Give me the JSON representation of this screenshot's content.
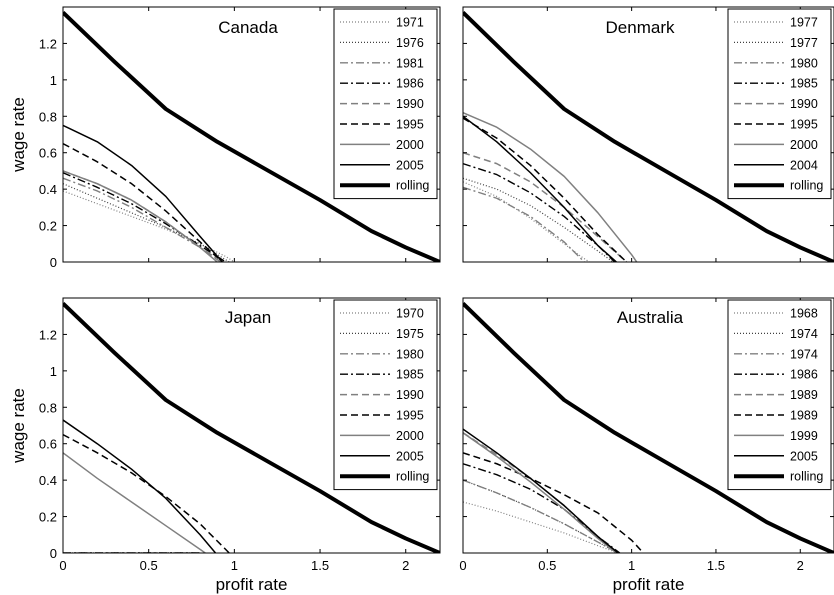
{
  "chart_data": [
    {
      "type": "line",
      "title": "Canada",
      "xlabel": "",
      "ylabel": "wage rate",
      "xlim": [
        0,
        2.2
      ],
      "ylim": [
        0,
        1.4
      ],
      "xticks": [
        "",
        "",
        "",
        "",
        ""
      ],
      "yticks": [
        "0",
        "0.2",
        "0.4",
        "0.6",
        "0.8",
        "1",
        "1.2"
      ],
      "grid": false,
      "legend_position": "top-right",
      "series": [
        {
          "name": "1971",
          "color": "#808080",
          "dash": "1,2",
          "width": 1.2,
          "x": [
            0,
            0.2,
            0.4,
            0.6,
            0.8,
            0.95,
            1.0
          ],
          "y": [
            0.39,
            0.32,
            0.25,
            0.18,
            0.1,
            0.03,
            0.0
          ]
        },
        {
          "name": "1976",
          "color": "#404040",
          "dash": "1,2",
          "width": 1.2,
          "x": [
            0,
            0.2,
            0.4,
            0.6,
            0.8,
            0.92,
            0.97
          ],
          "y": [
            0.43,
            0.35,
            0.27,
            0.19,
            0.1,
            0.03,
            0.0
          ]
        },
        {
          "name": "1981",
          "color": "#808080",
          "dash": "8,3,2,3",
          "width": 1.4,
          "x": [
            0,
            0.2,
            0.4,
            0.6,
            0.8,
            0.93
          ],
          "y": [
            0.46,
            0.39,
            0.3,
            0.19,
            0.08,
            0.0
          ]
        },
        {
          "name": "1986",
          "color": "#000000",
          "dash": "8,3,2,3",
          "width": 1.4,
          "x": [
            0,
            0.2,
            0.4,
            0.6,
            0.8,
            0.95
          ],
          "y": [
            0.49,
            0.41,
            0.32,
            0.21,
            0.09,
            0.0
          ]
        },
        {
          "name": "1990",
          "color": "#808080",
          "dash": "7,4",
          "width": 1.5,
          "x": [
            0,
            0.2,
            0.4,
            0.6,
            0.8,
            0.92
          ],
          "y": [
            0.5,
            0.43,
            0.34,
            0.22,
            0.08,
            0.0
          ]
        },
        {
          "name": "1995",
          "color": "#000000",
          "dash": "7,4",
          "width": 1.5,
          "x": [
            0,
            0.2,
            0.4,
            0.6,
            0.8,
            0.93
          ],
          "y": [
            0.65,
            0.55,
            0.43,
            0.28,
            0.11,
            0.0
          ]
        },
        {
          "name": "2000",
          "color": "#808080",
          "dash": "",
          "width": 1.5,
          "x": [
            0,
            0.2,
            0.4,
            0.6,
            0.8,
            0.9
          ],
          "y": [
            0.5,
            0.43,
            0.34,
            0.22,
            0.08,
            0.0
          ]
        },
        {
          "name": "2005",
          "color": "#000000",
          "dash": "",
          "width": 1.5,
          "x": [
            0,
            0.2,
            0.4,
            0.6,
            0.8,
            0.93
          ],
          "y": [
            0.75,
            0.66,
            0.53,
            0.36,
            0.14,
            0.0
          ]
        },
        {
          "name": "rolling",
          "color": "#000000",
          "dash": "",
          "width": 4,
          "x": [
            0,
            0.3,
            0.6,
            0.9,
            1.2,
            1.5,
            1.8,
            2.0,
            2.2
          ],
          "y": [
            1.37,
            1.1,
            0.84,
            0.66,
            0.5,
            0.34,
            0.17,
            0.08,
            0.0
          ]
        }
      ]
    },
    {
      "type": "line",
      "title": "Denmark",
      "xlabel": "",
      "ylabel": "",
      "xlim": [
        0,
        2.2
      ],
      "ylim": [
        0,
        1.4
      ],
      "xticks": [
        "",
        "",
        "",
        "",
        ""
      ],
      "yticks": [
        "",
        "",
        "",
        "",
        "",
        "",
        ""
      ],
      "grid": false,
      "legend_position": "top-right",
      "series": [
        {
          "name": "1977",
          "color": "#808080",
          "dash": "1,2",
          "width": 1.2,
          "x": [
            0,
            0.2,
            0.4,
            0.6,
            0.7,
            0.75
          ],
          "y": [
            0.44,
            0.36,
            0.24,
            0.1,
            0.03,
            0.0
          ]
        },
        {
          "name": "1977",
          "color": "#404040",
          "dash": "1,2",
          "width": 1.2,
          "x": [
            0,
            0.2,
            0.4,
            0.6,
            0.8,
            0.89
          ],
          "y": [
            0.46,
            0.4,
            0.31,
            0.19,
            0.06,
            0.0
          ]
        },
        {
          "name": "1980",
          "color": "#808080",
          "dash": "8,3,2,3",
          "width": 1.4,
          "x": [
            0,
            0.2,
            0.4,
            0.6,
            0.72
          ],
          "y": [
            0.41,
            0.35,
            0.25,
            0.11,
            0.0
          ]
        },
        {
          "name": "1985",
          "color": "#000000",
          "dash": "8,3,2,3",
          "width": 1.4,
          "x": [
            0,
            0.2,
            0.4,
            0.6,
            0.8,
            0.9
          ],
          "y": [
            0.54,
            0.48,
            0.38,
            0.25,
            0.09,
            0.0
          ]
        },
        {
          "name": "1990",
          "color": "#808080",
          "dash": "7,4",
          "width": 1.5,
          "x": [
            0,
            0.2,
            0.4,
            0.6,
            0.8,
            0.97
          ],
          "y": [
            0.6,
            0.54,
            0.44,
            0.3,
            0.14,
            0.0
          ]
        },
        {
          "name": "1995",
          "color": "#000000",
          "dash": "7,4",
          "width": 1.5,
          "x": [
            0,
            0.2,
            0.4,
            0.6,
            0.8,
            0.97
          ],
          "y": [
            0.79,
            0.68,
            0.53,
            0.35,
            0.15,
            0.0
          ]
        },
        {
          "name": "2000",
          "color": "#808080",
          "dash": "",
          "width": 1.5,
          "x": [
            0,
            0.2,
            0.4,
            0.6,
            0.8,
            1.0,
            1.03
          ],
          "y": [
            0.82,
            0.74,
            0.62,
            0.47,
            0.27,
            0.04,
            0.0
          ]
        },
        {
          "name": "2004",
          "color": "#000000",
          "dash": "",
          "width": 1.5,
          "x": [
            0,
            0.2,
            0.4,
            0.6,
            0.8,
            0.91
          ],
          "y": [
            0.8,
            0.66,
            0.49,
            0.3,
            0.09,
            0.0
          ]
        },
        {
          "name": "rolling",
          "color": "#000000",
          "dash": "",
          "width": 4,
          "x": [
            0,
            0.3,
            0.6,
            0.9,
            1.2,
            1.5,
            1.8,
            2.0,
            2.2
          ],
          "y": [
            1.37,
            1.1,
            0.84,
            0.66,
            0.5,
            0.34,
            0.17,
            0.08,
            0.0
          ]
        }
      ]
    },
    {
      "type": "line",
      "title": "Japan",
      "xlabel": "profit rate",
      "ylabel": "wage rate",
      "xlim": [
        0,
        2.2
      ],
      "ylim": [
        0,
        1.4
      ],
      "xticks": [
        "0",
        "0.5",
        "1",
        "1.5",
        "2"
      ],
      "yticks": [
        "0",
        "0.2",
        "0.4",
        "0.6",
        "0.8",
        "1",
        "1.2"
      ],
      "grid": false,
      "legend_position": "top-right",
      "series": [
        {
          "name": "1970",
          "color": "#808080",
          "dash": "1,2",
          "width": 1.2,
          "x": [
            0,
            0.8
          ],
          "y": [
            0.0,
            0.0
          ]
        },
        {
          "name": "1975",
          "color": "#404040",
          "dash": "1,2",
          "width": 1.2,
          "x": [
            0,
            0.8
          ],
          "y": [
            0.0,
            0.0
          ]
        },
        {
          "name": "1980",
          "color": "#808080",
          "dash": "8,3,2,3",
          "width": 1.4,
          "x": [
            0,
            0.8
          ],
          "y": [
            0.0,
            0.0
          ]
        },
        {
          "name": "1985",
          "color": "#000000",
          "dash": "8,3,2,3",
          "width": 1.4,
          "x": [
            0,
            0.8
          ],
          "y": [
            0.0,
            0.0
          ]
        },
        {
          "name": "1990",
          "color": "#808080",
          "dash": "7,4",
          "width": 1.5,
          "x": [
            0,
            0.8
          ],
          "y": [
            0.0,
            0.0
          ]
        },
        {
          "name": "1995",
          "color": "#000000",
          "dash": "7,4",
          "width": 1.5,
          "x": [
            0,
            0.2,
            0.4,
            0.6,
            0.8,
            0.97
          ],
          "y": [
            0.65,
            0.55,
            0.44,
            0.31,
            0.16,
            0.0
          ]
        },
        {
          "name": "2000",
          "color": "#808080",
          "dash": "",
          "width": 1.5,
          "x": [
            0,
            0.2,
            0.4,
            0.6,
            0.8,
            0.83
          ],
          "y": [
            0.55,
            0.41,
            0.28,
            0.15,
            0.02,
            0.0
          ]
        },
        {
          "name": "2005",
          "color": "#000000",
          "dash": "",
          "width": 1.5,
          "x": [
            0,
            0.2,
            0.4,
            0.6,
            0.8,
            0.89
          ],
          "y": [
            0.73,
            0.6,
            0.46,
            0.3,
            0.1,
            0.0
          ]
        },
        {
          "name": "rolling",
          "color": "#000000",
          "dash": "",
          "width": 4,
          "x": [
            0,
            0.3,
            0.6,
            0.9,
            1.2,
            1.5,
            1.8,
            2.0,
            2.2
          ],
          "y": [
            1.37,
            1.1,
            0.84,
            0.66,
            0.5,
            0.34,
            0.17,
            0.08,
            0.0
          ]
        }
      ]
    },
    {
      "type": "line",
      "title": "Australia",
      "xlabel": "profit rate",
      "ylabel": "",
      "xlim": [
        0,
        2.2
      ],
      "ylim": [
        0,
        1.4
      ],
      "xticks": [
        "0",
        "0.5",
        "1",
        "1.5",
        "2"
      ],
      "yticks": [
        "",
        "",
        "",
        "",
        "",
        "",
        ""
      ],
      "grid": false,
      "legend_position": "top-right",
      "series": [
        {
          "name": "1968",
          "color": "#808080",
          "dash": "1,2",
          "width": 1.2,
          "x": [
            0,
            0.2,
            0.4,
            0.6,
            0.8,
            0.92
          ],
          "y": [
            0.28,
            0.23,
            0.17,
            0.11,
            0.04,
            0.0
          ]
        },
        {
          "name": "1974",
          "color": "#404040",
          "dash": "1,2",
          "width": 1.2,
          "x": [
            0,
            0.2,
            0.4,
            0.6,
            0.8,
            0.92
          ],
          "y": [
            0.4,
            0.33,
            0.25,
            0.16,
            0.06,
            0.0
          ]
        },
        {
          "name": "1974",
          "color": "#808080",
          "dash": "8,3,2,3",
          "width": 1.4,
          "x": [
            0,
            0.2,
            0.4,
            0.6,
            0.8,
            0.92
          ],
          "y": [
            0.4,
            0.33,
            0.25,
            0.16,
            0.06,
            0.0
          ]
        },
        {
          "name": "1986",
          "color": "#000000",
          "dash": "8,3,2,3",
          "width": 1.4,
          "x": [
            0,
            0.2,
            0.4,
            0.6,
            0.8,
            0.93
          ],
          "y": [
            0.49,
            0.43,
            0.35,
            0.24,
            0.09,
            0.0
          ]
        },
        {
          "name": "1989",
          "color": "#808080",
          "dash": "7,4",
          "width": 1.5,
          "x": [
            0,
            0.2,
            0.4,
            0.6,
            0.8,
            0.92
          ],
          "y": [
            0.66,
            0.54,
            0.41,
            0.26,
            0.09,
            0.0
          ]
        },
        {
          "name": "1989",
          "color": "#000000",
          "dash": "7,4",
          "width": 1.5,
          "x": [
            0,
            0.2,
            0.4,
            0.6,
            0.8,
            1.0,
            1.07
          ],
          "y": [
            0.55,
            0.49,
            0.41,
            0.32,
            0.22,
            0.07,
            0.0
          ]
        },
        {
          "name": "1999",
          "color": "#808080",
          "dash": "",
          "width": 1.5,
          "x": [
            0,
            0.2,
            0.4,
            0.6,
            0.8,
            0.91
          ],
          "y": [
            0.66,
            0.53,
            0.39,
            0.24,
            0.08,
            0.0
          ]
        },
        {
          "name": "2005",
          "color": "#000000",
          "dash": "",
          "width": 1.5,
          "x": [
            0,
            0.2,
            0.4,
            0.6,
            0.8,
            0.92
          ],
          "y": [
            0.68,
            0.55,
            0.41,
            0.26,
            0.09,
            0.0
          ]
        },
        {
          "name": "rolling",
          "color": "#000000",
          "dash": "",
          "width": 4,
          "x": [
            0,
            0.3,
            0.6,
            0.9,
            1.2,
            1.5,
            1.8,
            2.0,
            2.2
          ],
          "y": [
            1.37,
            1.1,
            0.84,
            0.66,
            0.5,
            0.34,
            0.17,
            0.08,
            0.0
          ]
        }
      ]
    }
  ]
}
